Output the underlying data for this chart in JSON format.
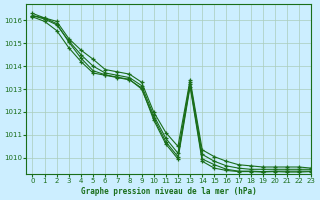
{
  "title": "",
  "xlabel": "Graphe pression niveau de la mer (hPa)",
  "background_color": "#cceeff",
  "grid_color": "#aaccbb",
  "line_color": "#1a6e1a",
  "marker_color": "#1a6e1a",
  "xlim": [
    -0.5,
    23
  ],
  "ylim": [
    1009.3,
    1016.7
  ],
  "yticks": [
    1010,
    1011,
    1012,
    1013,
    1014,
    1015,
    1016
  ],
  "xticks": [
    0,
    1,
    2,
    3,
    4,
    5,
    6,
    7,
    8,
    9,
    10,
    11,
    12,
    13,
    14,
    15,
    16,
    17,
    18,
    19,
    20,
    21,
    22,
    23
  ],
  "series": [
    [
      1016.2,
      1016.1,
      1015.9,
      1015.2,
      1014.7,
      1014.2,
      1013.8,
      1013.7,
      1013.6,
      1013.2,
      1012.0,
      1011.1,
      1010.4,
      1013.35,
      1010.3,
      1010.0,
      1009.8,
      1009.7,
      1009.6,
      1009.6,
      1009.6,
      1009.6,
      1009.6,
      1009.55
    ],
    [
      1016.2,
      1016.0,
      1015.8,
      1015.1,
      1014.5,
      1014.0,
      1013.7,
      1013.6,
      1013.5,
      1013.1,
      1011.8,
      1010.8,
      1010.1,
      1013.2,
      1010.1,
      1009.8,
      1009.6,
      1009.5,
      1009.5,
      1009.5,
      1009.5,
      1009.5,
      1009.5,
      1009.5
    ],
    [
      1016.15,
      1015.95,
      1015.6,
      1014.85,
      1014.3,
      1013.75,
      1013.65,
      1013.55,
      1013.45,
      1013.1,
      1011.7,
      1010.65,
      1010.05,
      1013.1,
      1009.8,
      1009.6,
      1009.5,
      1009.4,
      1009.4,
      1009.4,
      1009.4,
      1009.4,
      1009.4,
      1009.4
    ],
    [
      1016.3,
      1016.1,
      1015.9,
      1015.1,
      1014.4,
      1013.8,
      1013.6,
      1013.5,
      1013.4,
      1013.0,
      1011.75,
      1010.7,
      1010.05,
      1013.15,
      1009.9,
      1009.65,
      1009.5,
      1009.4,
      1009.4,
      1009.35,
      1009.4,
      1009.4,
      1009.4,
      1009.4
    ]
  ]
}
